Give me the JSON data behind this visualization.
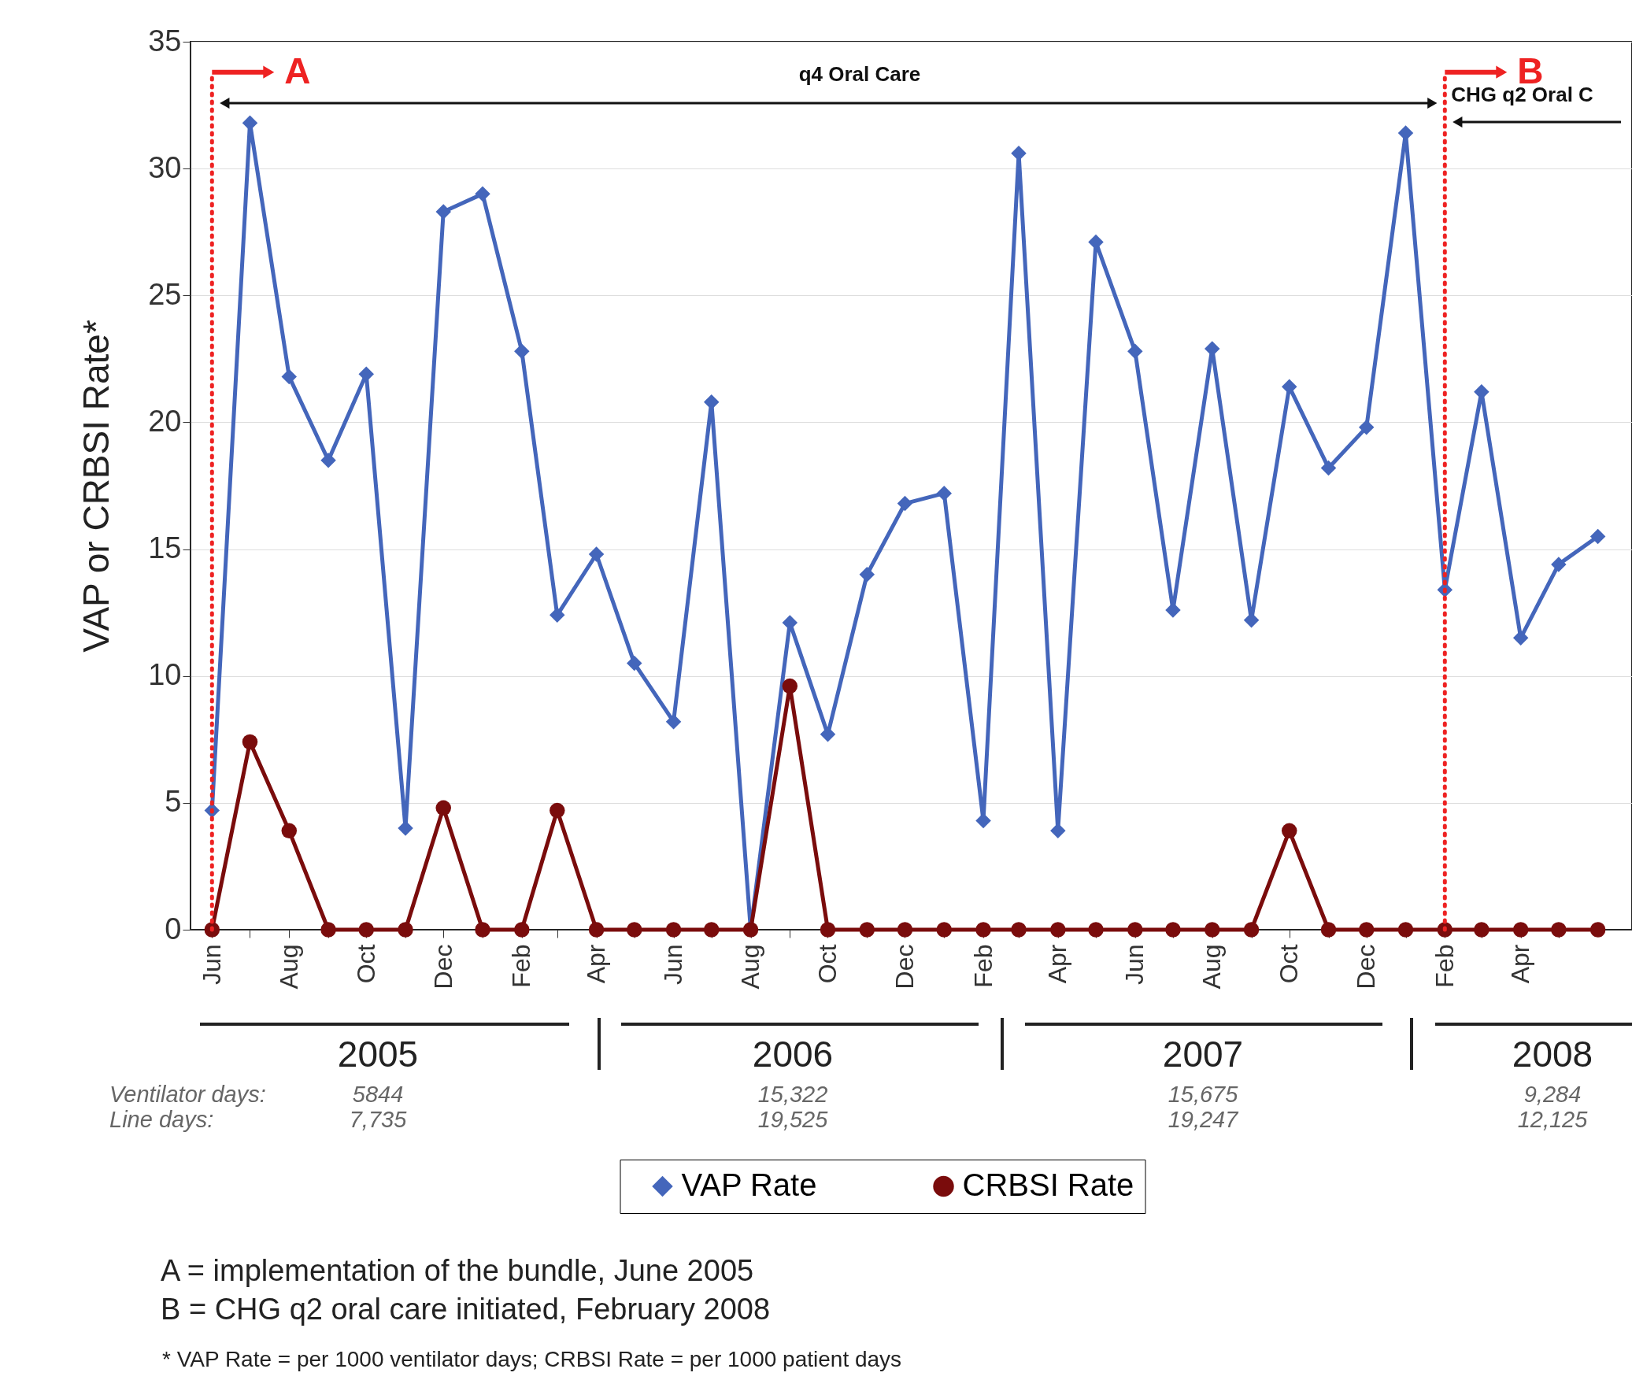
{
  "chart_data": {
    "type": "line",
    "ylabel": "VAP or CRBSI Rate*",
    "x": [
      "2005-06",
      "2005-07",
      "2005-08",
      "2005-09",
      "2005-10",
      "2005-11",
      "2005-12",
      "2006-01",
      "2006-02",
      "2006-03",
      "2006-04",
      "2006-05",
      "2006-06",
      "2006-07",
      "2006-08",
      "2006-09",
      "2006-10",
      "2006-11",
      "2006-12",
      "2007-01",
      "2007-02",
      "2007-03",
      "2007-04",
      "2007-05",
      "2007-06",
      "2007-07",
      "2007-08",
      "2007-09",
      "2007-10",
      "2007-11",
      "2007-12",
      "2008-01",
      "2008-02",
      "2008-03",
      "2008-04",
      "2008-05",
      "2008-06"
    ],
    "series": [
      {
        "name": "VAP Rate",
        "color": "#4466bb",
        "marker": "diamond",
        "values": [
          4.7,
          31.8,
          21.8,
          18.5,
          21.9,
          4.0,
          28.3,
          29.0,
          22.8,
          12.4,
          14.8,
          10.5,
          8.2,
          20.8,
          0,
          12.1,
          7.7,
          14.0,
          16.8,
          17.2,
          4.3,
          30.6,
          3.9,
          27.1,
          22.8,
          12.6,
          22.9,
          12.2,
          21.4,
          18.2,
          19.8,
          31.4,
          13.4,
          21.2,
          11.5,
          14.4,
          15.5
        ]
      },
      {
        "name": "CRBSI Rate",
        "color": "#7a0c0c",
        "marker": "circle",
        "values": [
          0,
          7.4,
          3.9,
          0,
          0,
          0,
          4.8,
          0,
          0,
          4.7,
          0,
          0,
          0,
          0,
          0,
          9.6,
          0,
          0,
          0,
          0,
          0,
          0,
          0,
          0,
          0,
          0,
          0,
          0,
          3.9,
          0,
          0,
          0,
          0,
          0,
          0,
          0,
          0
        ]
      }
    ],
    "xlim": [
      "2005-05-15",
      "2008-06-28"
    ],
    "xticks": [
      {
        "value": "2005-06",
        "label": "Jun"
      },
      {
        "value": "2005-07",
        "label": null
      },
      {
        "value": "2005-08",
        "label": "Aug"
      },
      {
        "value": "2005-09",
        "label": null
      },
      {
        "value": "2005-10",
        "label": "Oct"
      },
      {
        "value": "2005-11",
        "label": null
      },
      {
        "value": "2005-12",
        "label": "Dec"
      },
      {
        "value": "2006-01",
        "label": null
      },
      {
        "value": "2006-02",
        "label": "Feb"
      },
      {
        "value": "2006-03",
        "label": null
      },
      {
        "value": "2006-04",
        "label": "Apr"
      },
      {
        "value": "2006-05",
        "label": null
      },
      {
        "value": "2006-06",
        "label": "Jun"
      },
      {
        "value": "2006-07",
        "label": null
      },
      {
        "value": "2006-08",
        "label": "Aug"
      },
      {
        "value": "2006-09",
        "label": null
      },
      {
        "value": "2006-10",
        "label": "Oct"
      },
      {
        "value": "2006-11",
        "label": null
      },
      {
        "value": "2006-12",
        "label": "Dec"
      },
      {
        "value": "2007-01",
        "label": null
      },
      {
        "value": "2007-02",
        "label": "Feb"
      },
      {
        "value": "2007-03",
        "label": null
      },
      {
        "value": "2007-04",
        "label": "Apr"
      },
      {
        "value": "2007-05",
        "label": null
      },
      {
        "value": "2007-06",
        "label": "Jun"
      },
      {
        "value": "2007-07",
        "label": null
      },
      {
        "value": "2007-08",
        "label": "Aug"
      },
      {
        "value": "2007-09",
        "label": null
      },
      {
        "value": "2007-10",
        "label": "Oct"
      },
      {
        "value": "2007-11",
        "label": null
      },
      {
        "value": "2007-12",
        "label": "Dec"
      },
      {
        "value": "2008-01",
        "label": null
      },
      {
        "value": "2008-02",
        "label": "Feb"
      },
      {
        "value": "2008-03",
        "label": null
      },
      {
        "value": "2008-04",
        "label": "Apr"
      },
      {
        "value": "2008-05",
        "label": null
      }
    ],
    "ylim": [
      0,
      35
    ],
    "yticks": [
      0,
      5,
      10,
      15,
      20,
      25,
      30,
      35
    ],
    "grid": "y",
    "legend": "bottom",
    "ref_lines": [
      {
        "axis": "x",
        "value": "2005-06",
        "label": "A",
        "color": "#ee2222",
        "line_style": "dotted"
      },
      {
        "axis": "x",
        "value": "2008-02",
        "label": "B",
        "color": "#ee2222",
        "line_style": "dotted"
      }
    ],
    "annotations": [
      "q4 Oral Care",
      {
        "text": "CHG q2 Oral C",
        "x": "2008-02",
        "y": 32.9
      },
      "2005",
      "5844",
      "7,735",
      "2006",
      "15,322",
      "19,525",
      "2007",
      "15,675",
      "19,247",
      "2008",
      "9,284",
      "12,125",
      "Ventilator days:",
      "Line days:",
      "A = implementation of the bundle, June 2005",
      "B = CHG q2 oral care initiated, February 2008",
      "*  VAP Rate = per 1000 ventilator days; CRBSI Rate = per 1000 patient days"
    ]
  }
}
